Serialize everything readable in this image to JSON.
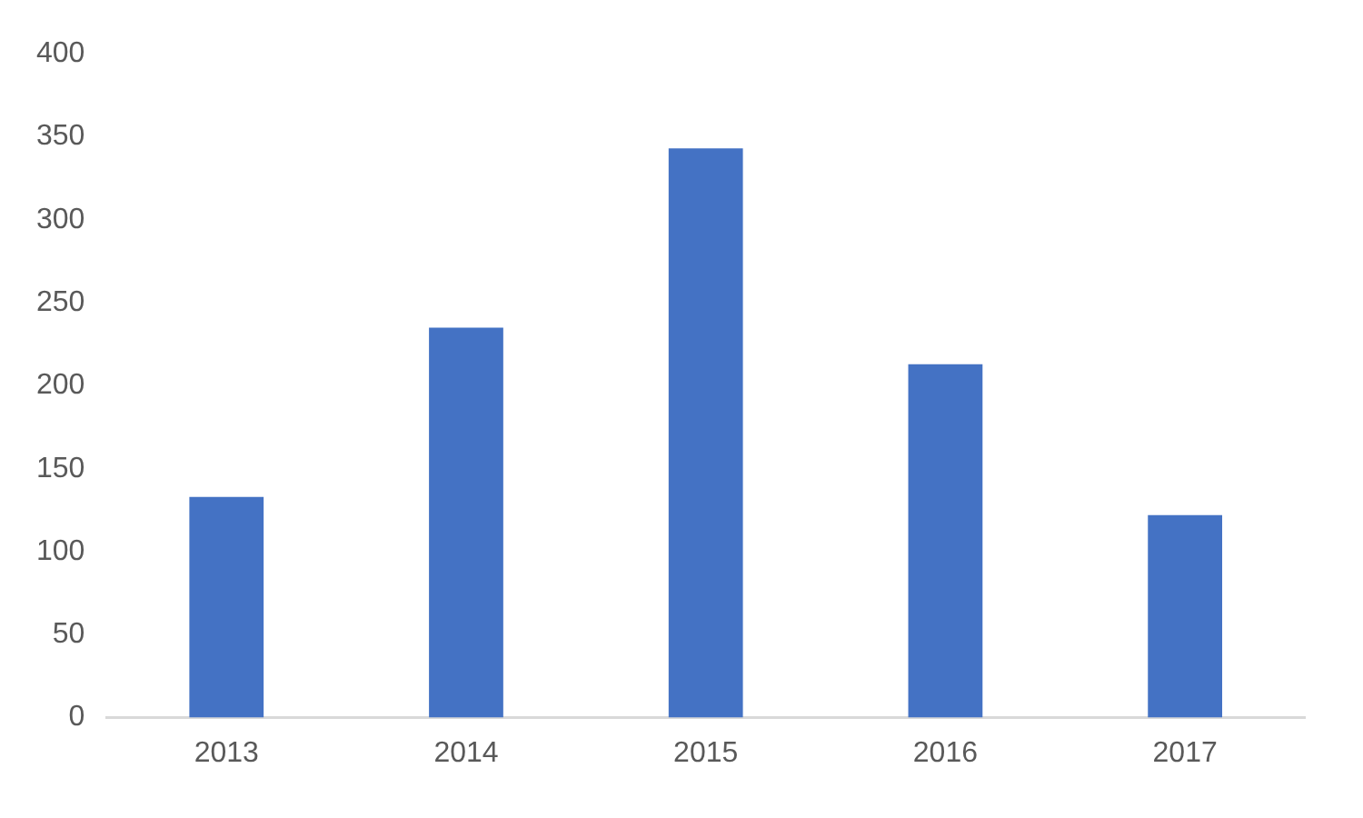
{
  "chart_data": {
    "type": "bar",
    "categories": [
      "2013",
      "2014",
      "2015",
      "2016",
      "2017"
    ],
    "values": [
      133,
      235,
      343,
      213,
      122
    ],
    "color": "#4472c4",
    "ylim": [
      0,
      400
    ],
    "yticks": [
      0,
      50,
      100,
      150,
      200,
      250,
      300,
      350,
      400
    ],
    "grid": false,
    "legend": false
  }
}
